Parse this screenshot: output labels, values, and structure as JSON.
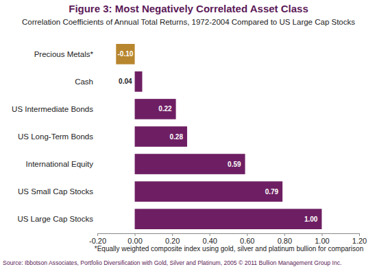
{
  "chart_data": {
    "type": "bar",
    "orientation": "horizontal",
    "title": "Figure 3: Most Negatively Correlated Asset Class",
    "subtitle": "Correlation Coefficients of Annual Total Returns, 1972-2004 Compared to US Large Cap Stocks",
    "categories": [
      "Precious Metals*",
      "Cash",
      "US Intermediate Bonds",
      "US Long-Term Bonds",
      "International Equity",
      "US Small Cap Stocks",
      "US Large Cap Stocks"
    ],
    "values": [
      -0.1,
      0.04,
      0.22,
      0.28,
      0.59,
      0.79,
      1.0
    ],
    "value_labels": [
      "-0.10",
      "0.04",
      "0.22",
      "0.28",
      "0.59",
      "0.79",
      "1.00"
    ],
    "colors": [
      "#b8862e",
      "#6e1f63",
      "#6e1f63",
      "#6e1f63",
      "#6e1f63",
      "#6e1f63",
      "#6e1f63"
    ],
    "data_labels": true,
    "grid": false,
    "xlim": [
      -0.2,
      1.2
    ],
    "xticks": [
      {
        "value": -0.2,
        "label": "-0.20"
      },
      {
        "value": 0,
        "label": "0.00"
      },
      {
        "value": 0.2,
        "label": "0.20"
      },
      {
        "value": 0.4,
        "label": "0.40"
      },
      {
        "value": 0.6,
        "label": "0.60"
      },
      {
        "value": 0.8,
        "label": "0.80"
      },
      {
        "value": 1.0,
        "label": "1.00"
      },
      {
        "value": 1.2,
        "label": "1.20"
      }
    ],
    "annotations": [
      "*Equally weighted composite index using gold, silver and platinum bullion for comparison",
      "Source: Ibbotson Associates, Portfolio Diversification with Gold, Silver and Platinum, 2005 © 2011 Bullion Management Group Inc."
    ]
  }
}
